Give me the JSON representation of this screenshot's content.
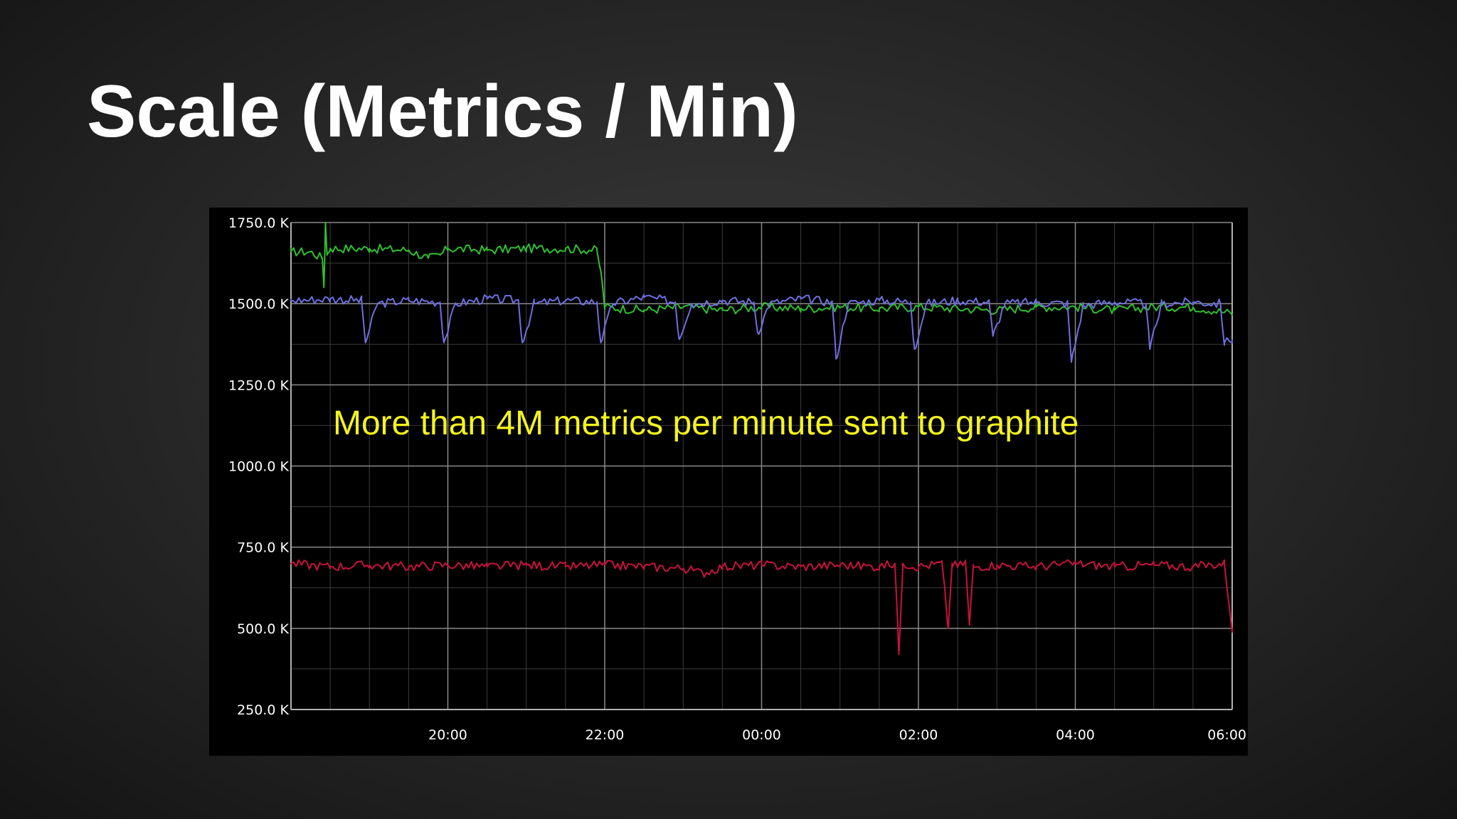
{
  "slide": {
    "title": "Scale (Metrics / Min)"
  },
  "chart_data": {
    "type": "line",
    "title": "",
    "xlabel": "",
    "ylabel": "",
    "annotation": "More than 4M metrics per minute sent to graphite",
    "x_range_hours": [
      18.0,
      30.0
    ],
    "ylim": [
      250,
      1750
    ],
    "y_unit": "K",
    "grid": true,
    "legend": "none",
    "y_ticks": [
      {
        "value": 1750,
        "label": "1750.0 K"
      },
      {
        "value": 1500,
        "label": "1500.0 K"
      },
      {
        "value": 1250,
        "label": "1250.0 K"
      },
      {
        "value": 1000,
        "label": "1000.0 K"
      },
      {
        "value": 750,
        "label": "750.0 K"
      },
      {
        "value": 500,
        "label": "500.0 K"
      },
      {
        "value": 250,
        "label": "250.0 K"
      }
    ],
    "x_ticks": [
      {
        "value": 20,
        "label": "20:00"
      },
      {
        "value": 22,
        "label": "22:00"
      },
      {
        "value": 24,
        "label": "00:00"
      },
      {
        "value": 26,
        "label": "02:00"
      },
      {
        "value": 28,
        "label": "04:00"
      },
      {
        "value": 30,
        "label": "06:00"
      }
    ],
    "series": [
      {
        "color": "#2fbf2f",
        "x": [
          18.0,
          18.25,
          18.4,
          18.42,
          18.44,
          18.46,
          18.5,
          18.75,
          19.0,
          19.5,
          19.75,
          19.9,
          20.0,
          20.5,
          21.0,
          21.5,
          21.9,
          21.95,
          22.0,
          22.5,
          23.0,
          23.5,
          24.0,
          24.5,
          25.0,
          25.5,
          26.0,
          26.5,
          27.0,
          27.5,
          28.0,
          28.5,
          29.0,
          29.5,
          30.0
        ],
        "y": [
          1660,
          1660,
          1640,
          1550,
          1750,
          1650,
          1670,
          1670,
          1670,
          1665,
          1640,
          1650,
          1670,
          1665,
          1670,
          1670,
          1665,
          1600,
          1490,
          1480,
          1490,
          1480,
          1490,
          1485,
          1490,
          1485,
          1490,
          1485,
          1480,
          1490,
          1490,
          1480,
          1490,
          1490,
          1470
        ]
      },
      {
        "color": "#6f6fe0",
        "x": [
          18.0,
          18.5,
          18.9,
          18.95,
          19.1,
          19.5,
          19.9,
          19.95,
          20.1,
          20.5,
          20.9,
          20.95,
          21.1,
          21.5,
          21.9,
          21.95,
          22.1,
          22.5,
          22.9,
          22.95,
          23.1,
          23.5,
          23.9,
          23.95,
          24.1,
          24.5,
          24.9,
          24.95,
          25.1,
          25.5,
          25.9,
          25.95,
          26.1,
          26.5,
          26.9,
          26.95,
          27.1,
          27.5,
          27.9,
          27.95,
          28.1,
          28.5,
          28.9,
          28.95,
          29.1,
          29.5,
          29.85,
          29.9,
          30.0
        ],
        "y": [
          1510,
          1515,
          1510,
          1380,
          1500,
          1510,
          1505,
          1380,
          1500,
          1515,
          1510,
          1380,
          1500,
          1510,
          1505,
          1380,
          1500,
          1520,
          1505,
          1390,
          1500,
          1510,
          1505,
          1410,
          1500,
          1515,
          1505,
          1330,
          1500,
          1510,
          1505,
          1360,
          1500,
          1510,
          1505,
          1400,
          1500,
          1505,
          1500,
          1320,
          1495,
          1505,
          1500,
          1360,
          1500,
          1505,
          1500,
          1380,
          1390
        ]
      },
      {
        "color": "#c8123c",
        "x": [
          18.0,
          18.5,
          19.0,
          19.5,
          20.0,
          20.5,
          21.0,
          21.5,
          22.0,
          22.5,
          23.0,
          23.25,
          23.5,
          24.0,
          24.5,
          25.0,
          25.5,
          25.7,
          25.75,
          25.8,
          26.0,
          26.3,
          26.38,
          26.43,
          26.5,
          26.6,
          26.65,
          26.7,
          27.0,
          27.5,
          28.0,
          28.5,
          29.0,
          29.5,
          29.9,
          30.0
        ],
        "y": [
          700,
          690,
          695,
          690,
          695,
          690,
          695,
          690,
          695,
          690,
          685,
          670,
          690,
          695,
          690,
          695,
          690,
          700,
          420,
          700,
          690,
          700,
          500,
          700,
          690,
          705,
          510,
          690,
          695,
          690,
          700,
          690,
          695,
          690,
          700,
          500
        ]
      }
    ]
  }
}
